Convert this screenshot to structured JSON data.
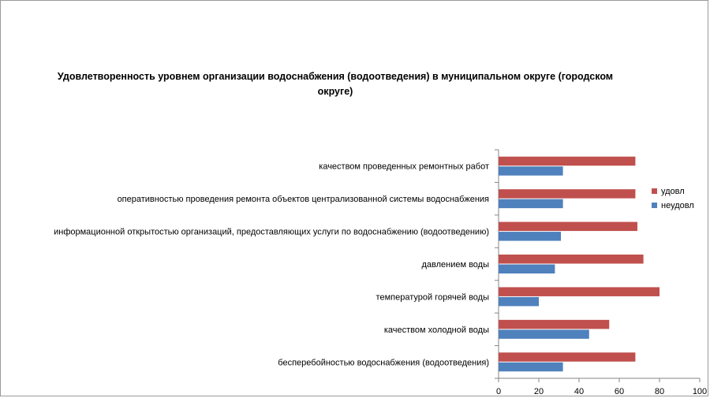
{
  "chart_data": {
    "type": "bar",
    "orientation": "horizontal",
    "title": "Удовлетворенность уровнем организации водоснабжения (водоотведения) в муниципальном округе (городском округе)",
    "categories": [
      "качеством проведенных ремонтных работ",
      "оперативностью проведения ремонта объектов централизованной системы водоснабжения",
      "информационной открытостью организаций, предоставляющих услуги по водоснабжению (водоотведению)",
      "давлением воды",
      "температурой горячей воды",
      "качеством холодной воды",
      "бесперебойностью водоснабжения (водоотведения)"
    ],
    "series": [
      {
        "name": "удовл",
        "color": "#c0504d",
        "values": [
          68,
          68,
          69,
          72,
          80,
          55,
          68
        ]
      },
      {
        "name": "неудовл",
        "color": "#4f81bd",
        "values": [
          32,
          32,
          31,
          28,
          20,
          45,
          32
        ]
      }
    ],
    "xlim": [
      0,
      100
    ],
    "xticks": [
      "0",
      "20",
      "40",
      "60",
      "80",
      "100"
    ],
    "grid": false,
    "legend_position": "right"
  }
}
